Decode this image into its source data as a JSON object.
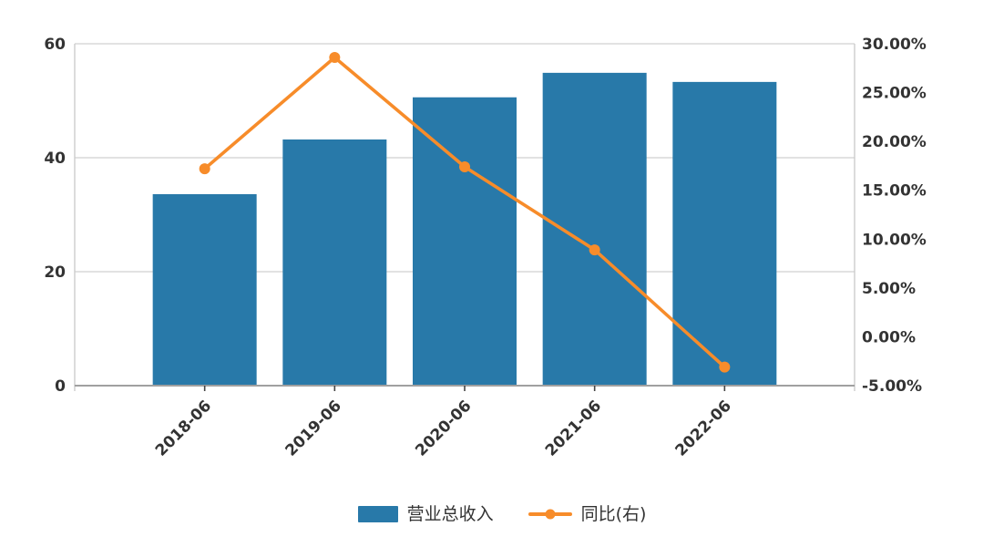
{
  "chart_data": {
    "type": "combo",
    "categories": [
      "2018-06",
      "2019-06",
      "2020-06",
      "2021-06",
      "2022-06"
    ],
    "series": [
      {
        "name": "营业总收入",
        "type": "bar",
        "y_axis": "left",
        "color": "#2879a9",
        "values": [
          33.6,
          43.2,
          50.6,
          54.9,
          53.3
        ]
      },
      {
        "name": "同比(右)",
        "type": "line",
        "y_axis": "right",
        "color": "#f78c2a",
        "marker": "circle",
        "unit": "%",
        "values": [
          17.2,
          28.6,
          17.4,
          8.9,
          -3.1
        ]
      }
    ],
    "left_axis": {
      "range": [
        0,
        60
      ],
      "tick_values": [
        0,
        20,
        40,
        60
      ],
      "tick_labels": [
        "0",
        "20",
        "40",
        "60"
      ]
    },
    "right_axis": {
      "range": [
        -5,
        30
      ],
      "unit": "%",
      "tick_values": [
        -5,
        0,
        5,
        10,
        15,
        20,
        25,
        30
      ],
      "tick_labels": [
        "-5.00%",
        "0.00%",
        "5.00%",
        "10.00%",
        "15.00%",
        "20.00%",
        "25.00%",
        "30.00%"
      ]
    },
    "x_tick_rotation_deg": 45,
    "grid": true,
    "legend_position": "bottom"
  },
  "legend": {
    "bar_label": "营业总收入",
    "line_label": "同比(右)"
  },
  "colors": {
    "bar": "#2879a9",
    "line": "#f78c2a",
    "axis_text": "#333333",
    "gridline": "#d9d9d9",
    "side_border": "#cccccc",
    "bottom_axis": "#a0a0a0",
    "tick": "#444444",
    "background": "#ffffff"
  }
}
